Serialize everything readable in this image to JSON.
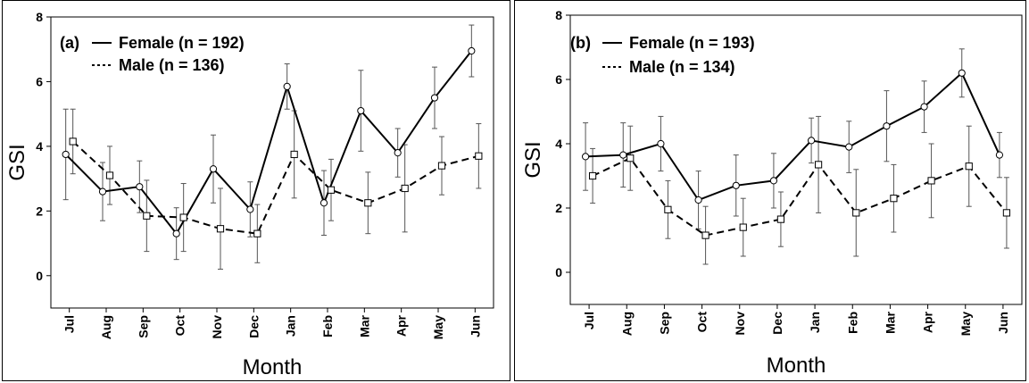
{
  "chart_data": [
    {
      "type": "line",
      "panel_label": "(a)",
      "xlabel": "Month",
      "ylabel": "GSI",
      "categories": [
        "Jul",
        "Aug",
        "Sep",
        "Oct",
        "Nov",
        "Dec",
        "Jan",
        "Feb",
        "Mar",
        "Apr",
        "May",
        "Jun"
      ],
      "ylim": [
        -1,
        8
      ],
      "yticks": [
        0,
        2,
        4,
        6,
        8
      ],
      "grid": false,
      "legend_position": "top-left",
      "series": [
        {
          "name": "Female (n = 192)",
          "style": "solid",
          "marker": "circle",
          "values": [
            3.75,
            2.6,
            2.75,
            1.3,
            3.3,
            2.05,
            5.85,
            2.25,
            5.1,
            3.8,
            5.5,
            6.95
          ],
          "err": [
            1.4,
            0.9,
            0.8,
            0.8,
            1.05,
            0.85,
            0.7,
            1.0,
            1.25,
            0.75,
            0.95,
            0.8
          ]
        },
        {
          "name": "Male (n = 136)",
          "style": "dashed",
          "marker": "square",
          "values": [
            4.15,
            3.1,
            1.85,
            1.8,
            1.45,
            1.3,
            3.75,
            2.65,
            2.25,
            2.7,
            3.4,
            3.7
          ],
          "err": [
            1.0,
            0.9,
            1.1,
            1.05,
            1.25,
            0.9,
            1.35,
            0.95,
            0.95,
            1.35,
            0.9,
            1.0
          ]
        }
      ]
    },
    {
      "type": "line",
      "panel_label": "(b)",
      "xlabel": "Month",
      "ylabel": "GSI",
      "categories": [
        "Jul",
        "Aug",
        "Sep",
        "Oct",
        "Nov",
        "Dec",
        "Jan",
        "Feb",
        "Mar",
        "Apr",
        "May",
        "Jun"
      ],
      "ylim": [
        -1,
        8
      ],
      "yticks": [
        0,
        2,
        4,
        6,
        8
      ],
      "grid": false,
      "legend_position": "top-left",
      "series": [
        {
          "name": "Female (n = 193)",
          "style": "solid",
          "marker": "circle",
          "values": [
            3.6,
            3.65,
            4.0,
            2.25,
            2.7,
            2.85,
            4.1,
            3.9,
            4.55,
            5.15,
            6.2,
            3.65
          ],
          "err": [
            1.05,
            1.0,
            0.85,
            0.9,
            0.95,
            0.85,
            0.7,
            0.8,
            1.1,
            0.8,
            0.75,
            0.7
          ]
        },
        {
          "name": "Male (n = 134)",
          "style": "dashed",
          "marker": "square",
          "values": [
            3.0,
            3.55,
            1.95,
            1.15,
            1.4,
            1.65,
            3.35,
            1.85,
            2.3,
            2.85,
            3.3,
            1.85
          ],
          "err": [
            0.85,
            1.0,
            0.9,
            0.9,
            0.9,
            0.85,
            1.5,
            1.35,
            1.05,
            1.15,
            1.25,
            1.1
          ]
        }
      ]
    }
  ]
}
